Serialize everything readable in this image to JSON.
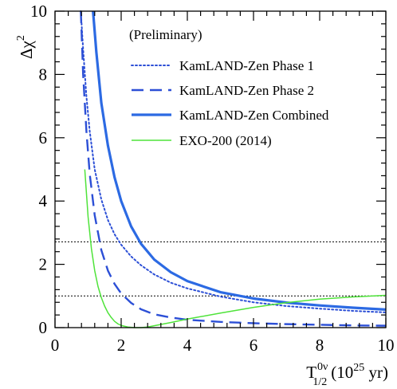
{
  "chart_data": {
    "type": "line",
    "xlabel": "T",
    "xlabel_sup": "0ν",
    "xlabel_sub": "1/2",
    "xlabel_unit": "(10",
    "xlabel_unit_sup": "25",
    "xlabel_unit_end": " yr)",
    "ylabel": "Δχ",
    "ylabel_sup": "2",
    "xlim": [
      0,
      10
    ],
    "ylim": [
      0,
      10
    ],
    "x_ticks": [
      "0",
      "2",
      "4",
      "6",
      "8",
      "10"
    ],
    "y_ticks": [
      "0",
      "2",
      "4",
      "6",
      "8",
      "10"
    ],
    "grid": false,
    "legend_position": "top-right",
    "annotation": "(Preliminary)",
    "reference_lines": [
      2.71,
      1.0
    ],
    "series": [
      {
        "name": "KamLAND-Zen Phase 1",
        "style": "dotted",
        "color": "#2c4fd6",
        "x": [
          0.78,
          0.85,
          0.95,
          1.05,
          1.2,
          1.4,
          1.6,
          1.8,
          2.0,
          2.3,
          2.6,
          3.0,
          3.5,
          4.0,
          5.0,
          6.0,
          7.0,
          8.0,
          9.0,
          10.0
        ],
        "y": [
          10.0,
          8.8,
          7.3,
          6.2,
          5.0,
          4.05,
          3.4,
          2.95,
          2.62,
          2.25,
          1.97,
          1.68,
          1.42,
          1.24,
          0.98,
          0.8,
          0.68,
          0.6,
          0.53,
          0.48
        ]
      },
      {
        "name": "KamLAND-Zen Phase 2",
        "style": "dashed",
        "color": "#2c4fd6",
        "x": [
          0.78,
          0.85,
          0.95,
          1.05,
          1.2,
          1.4,
          1.6,
          1.8,
          2.0,
          2.3,
          2.6,
          3.0,
          3.5,
          4.0,
          5.0,
          6.0,
          7.0,
          8.0,
          9.0,
          10.0
        ],
        "y": [
          10.0,
          8.0,
          6.2,
          4.85,
          3.55,
          2.45,
          1.8,
          1.38,
          1.08,
          0.78,
          0.58,
          0.42,
          0.32,
          0.25,
          0.18,
          0.14,
          0.11,
          0.09,
          0.07,
          0.06
        ]
      },
      {
        "name": "KamLAND-Zen Combined",
        "style": "solid",
        "color": "#2c6ae3",
        "x": [
          1.15,
          1.25,
          1.4,
          1.6,
          1.8,
          2.0,
          2.3,
          2.6,
          3.0,
          3.5,
          4.0,
          5.0,
          6.0,
          7.0,
          8.0,
          9.0,
          10.0
        ],
        "y": [
          10.0,
          8.7,
          7.1,
          5.75,
          4.75,
          4.0,
          3.2,
          2.65,
          2.15,
          1.75,
          1.47,
          1.12,
          0.92,
          0.79,
          0.7,
          0.63,
          0.57
        ]
      },
      {
        "name": "EXO-200 (2014)",
        "style": "solid-thin",
        "color": "#4fe33a",
        "x": [
          0.9,
          1.0,
          1.1,
          1.2,
          1.3,
          1.4,
          1.5,
          1.6,
          1.7,
          1.8,
          1.9,
          2.0,
          2.2,
          2.4,
          2.6,
          2.8,
          3.0,
          3.5,
          4.0,
          5.0,
          6.0,
          7.0,
          8.0,
          9.0,
          10.0
        ],
        "y": [
          5.0,
          3.5,
          2.5,
          1.8,
          1.3,
          0.95,
          0.68,
          0.47,
          0.32,
          0.2,
          0.12,
          0.07,
          0.02,
          0.0,
          0.0,
          0.02,
          0.06,
          0.16,
          0.27,
          0.46,
          0.64,
          0.79,
          0.9,
          0.97,
          1.02
        ]
      }
    ]
  }
}
